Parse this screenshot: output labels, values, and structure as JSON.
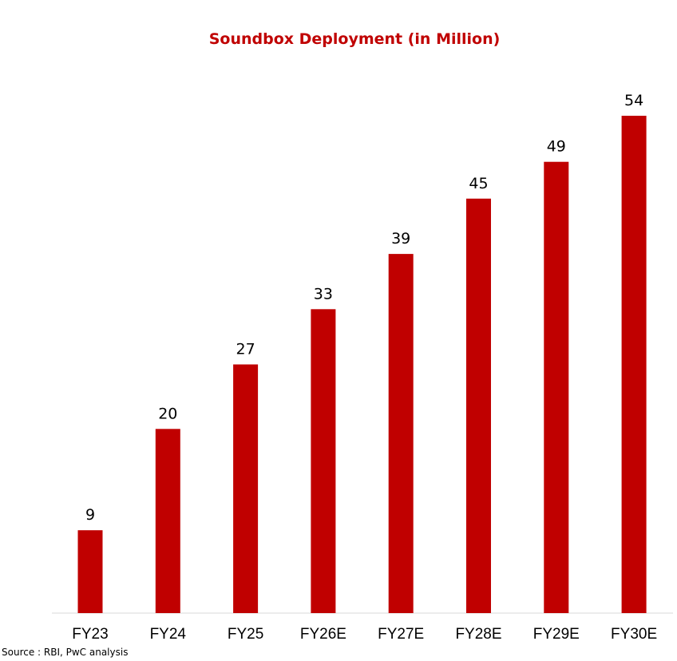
{
  "chart_data": {
    "type": "bar",
    "title": "Soundbox Deployment (in Million)",
    "categories": [
      "FY23",
      "FY24",
      "FY25",
      "FY26E",
      "FY27E",
      "FY28E",
      "FY29E",
      "FY30E"
    ],
    "values": [
      9,
      20,
      27,
      33,
      39,
      45,
      49,
      54
    ],
    "xlabel": "",
    "ylabel": "",
    "ylim": [
      0,
      54
    ],
    "grid": false,
    "bar_color": "#c00000"
  },
  "source": "Source : RBI, PwC analysis"
}
